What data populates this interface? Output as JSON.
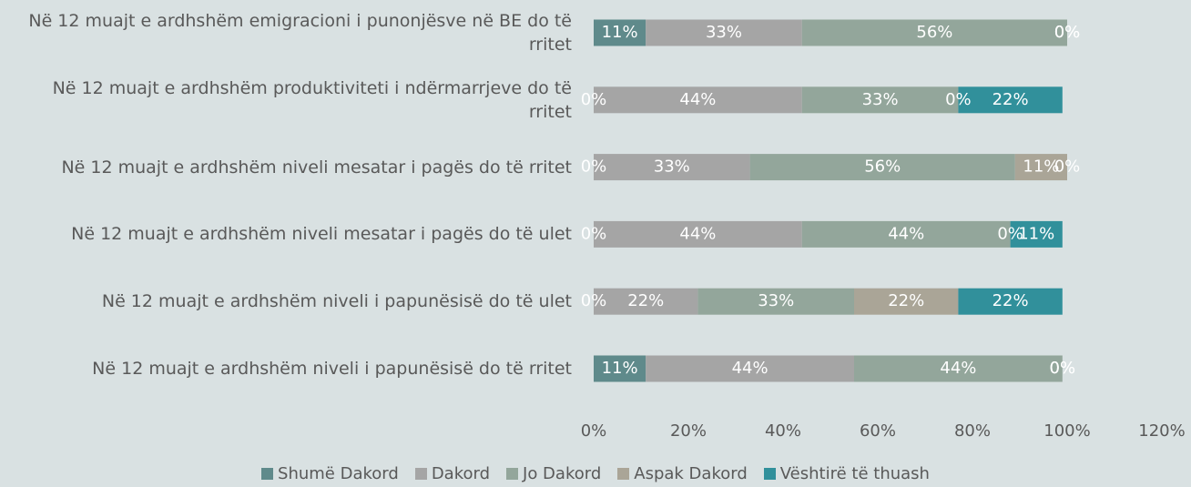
{
  "chart_data": {
    "type": "stacked-bar-horizontal",
    "categories": [
      "Në 12 muajt e ardhshëm emigracioni i punonjësve në BE do të rritet",
      "Në 12 muajt e ardhshëm produktiviteti i ndërmarrjeve do të rritet",
      "Në 12 muajt e ardhshëm niveli mesatar i pagës do të rritet",
      "Në 12 muajt e ardhshëm niveli mesatar i pagës do të ulet",
      "Në 12 muajt e ardhshëm niveli i papunësisë do të ulet",
      "Në 12 muajt e ardhshëm niveli i papunësisë do të rritet"
    ],
    "series": [
      {
        "name": "Shumë Dakord",
        "color": "#5f8a8b",
        "values": [
          11,
          0,
          0,
          0,
          0,
          11
        ],
        "value_labels": [
          "11%",
          "0%",
          "0%",
          "0%",
          "0%",
          "11%"
        ]
      },
      {
        "name": "Dakord",
        "color": "#a5a5a5",
        "values": [
          33,
          44,
          33,
          44,
          22,
          44
        ],
        "value_labels": [
          "33%",
          "44%",
          "33%",
          "44%",
          "22%",
          "44%"
        ]
      },
      {
        "name": "Jo Dakord",
        "color": "#93a69b",
        "values": [
          56,
          33,
          56,
          44,
          33,
          44
        ],
        "value_labels": [
          "56%",
          "33%",
          "56%",
          "44%",
          "33%",
          "44%"
        ]
      },
      {
        "name": "Aspak Dakord",
        "color": "#aaa597",
        "values": [
          0,
          0,
          11,
          0,
          22,
          0
        ],
        "value_labels": [
          "0%",
          "0%",
          "11%",
          "0%",
          "22%",
          "0%"
        ]
      },
      {
        "name": "Vështirë të thuash",
        "color": "#31909b",
        "values": [
          0,
          22,
          0,
          11,
          22,
          0
        ],
        "value_labels": [
          "0%",
          "22%",
          "0%",
          "11%",
          "22%",
          "0%"
        ]
      }
    ],
    "xlim": [
      0,
      120
    ],
    "xticks": [
      {
        "value": 0,
        "label": "0%"
      },
      {
        "value": 20,
        "label": "20%"
      },
      {
        "value": 40,
        "label": "40%"
      },
      {
        "value": 60,
        "label": "60%"
      },
      {
        "value": 80,
        "label": "80%"
      },
      {
        "value": 100,
        "label": "100%"
      },
      {
        "value": 120,
        "label": "120%"
      }
    ],
    "grid": false,
    "legend": "bottom"
  }
}
